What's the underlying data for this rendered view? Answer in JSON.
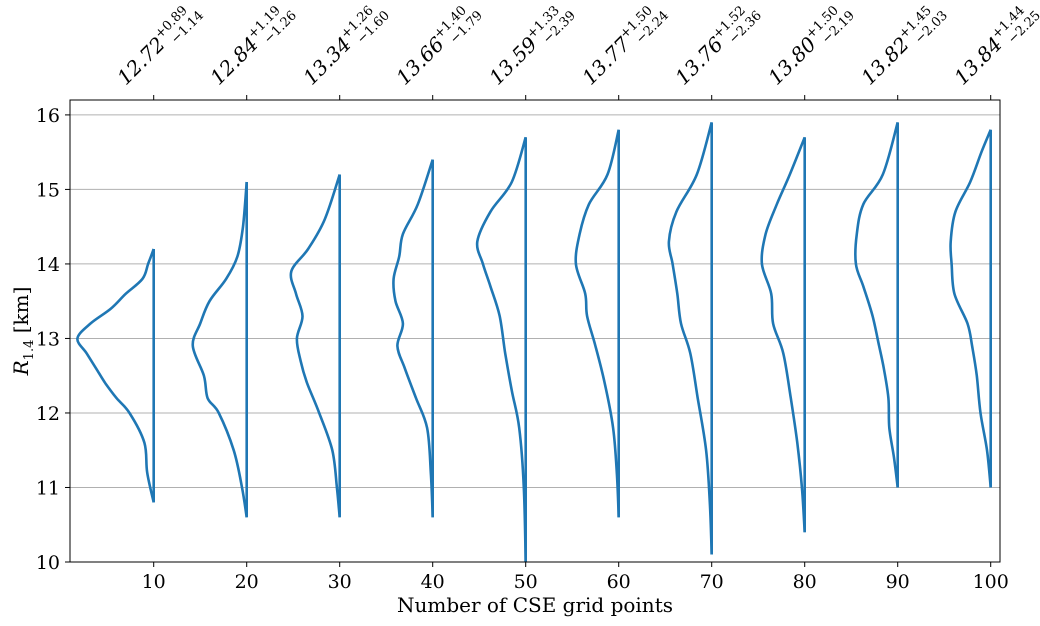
{
  "chart_data": {
    "type": "violin",
    "xlabel": "Number of CSE grid points",
    "ylabel": "R",
    "ylabel_sub": "1.4",
    "ylabel_unit": " [km]",
    "xlim": [
      1,
      101
    ],
    "ylim": [
      10,
      16.2
    ],
    "xticks": [
      10,
      20,
      30,
      40,
      50,
      60,
      70,
      80,
      90,
      100
    ],
    "yticks": [
      10,
      11,
      12,
      13,
      14,
      15,
      16
    ],
    "grid": "horizontal",
    "series_color": "#1f77b4",
    "top_labels": [
      {
        "x": 10,
        "median": "12.72",
        "plus": "+0.89",
        "minus": "−1.14"
      },
      {
        "x": 20,
        "median": "12.84",
        "plus": "+1.19",
        "minus": "−1.26"
      },
      {
        "x": 30,
        "median": "13.34",
        "plus": "+1.26",
        "minus": "−1.60"
      },
      {
        "x": 40,
        "median": "13.66",
        "plus": "+1.40",
        "minus": "−1.79"
      },
      {
        "x": 50,
        "median": "13.59",
        "plus": "+1.33",
        "minus": "−2.39"
      },
      {
        "x": 60,
        "median": "13.77",
        "plus": "+1.50",
        "minus": "−2.24"
      },
      {
        "x": 70,
        "median": "13.76",
        "plus": "+1.52",
        "minus": "−2.36"
      },
      {
        "x": 80,
        "median": "13.80",
        "plus": "+1.50",
        "minus": "−2.19"
      },
      {
        "x": 90,
        "median": "13.82",
        "plus": "+1.45",
        "minus": "−2.03"
      },
      {
        "x": 100,
        "median": "13.84",
        "plus": "+1.44",
        "minus": "−2.25"
      }
    ],
    "distributions": [
      {
        "x": 10,
        "profile": [
          [
            10.8,
            0
          ],
          [
            11.2,
            0.7
          ],
          [
            11.6,
            1.0
          ],
          [
            12.0,
            2.6
          ],
          [
            12.2,
            4.0
          ],
          [
            12.4,
            5.2
          ],
          [
            12.6,
            6.2
          ],
          [
            12.8,
            7.2
          ],
          [
            13.0,
            8.2
          ],
          [
            13.2,
            6.8
          ],
          [
            13.4,
            4.6
          ],
          [
            13.6,
            3.0
          ],
          [
            13.8,
            1.2
          ],
          [
            14.0,
            0.6
          ],
          [
            14.2,
            0
          ]
        ]
      },
      {
        "x": 20,
        "profile": [
          [
            10.6,
            0
          ],
          [
            11.0,
            0.5
          ],
          [
            11.5,
            1.4
          ],
          [
            12.0,
            3.0
          ],
          [
            12.2,
            4.2
          ],
          [
            12.5,
            4.6
          ],
          [
            12.9,
            5.8
          ],
          [
            13.2,
            5.0
          ],
          [
            13.5,
            4.0
          ],
          [
            13.8,
            2.2
          ],
          [
            14.1,
            1.0
          ],
          [
            14.5,
            0.4
          ],
          [
            15.1,
            0
          ]
        ]
      },
      {
        "x": 30,
        "profile": [
          [
            10.6,
            0
          ],
          [
            11.0,
            0.3
          ],
          [
            11.5,
            0.8
          ],
          [
            12.0,
            2.2
          ],
          [
            12.4,
            3.5
          ],
          [
            12.7,
            4.2
          ],
          [
            13.0,
            4.6
          ],
          [
            13.3,
            4.0
          ],
          [
            13.6,
            4.7
          ],
          [
            13.9,
            5.2
          ],
          [
            14.2,
            3.4
          ],
          [
            14.6,
            1.6
          ],
          [
            15.2,
            0
          ]
        ]
      },
      {
        "x": 40,
        "profile": [
          [
            10.6,
            0
          ],
          [
            11.2,
            0.2
          ],
          [
            11.8,
            0.6
          ],
          [
            12.2,
            1.8
          ],
          [
            12.6,
            3.0
          ],
          [
            12.9,
            3.8
          ],
          [
            13.2,
            3.2
          ],
          [
            13.5,
            4.0
          ],
          [
            13.8,
            4.2
          ],
          [
            14.1,
            3.6
          ],
          [
            14.4,
            3.2
          ],
          [
            14.8,
            1.6
          ],
          [
            15.4,
            0
          ]
        ]
      },
      {
        "x": 50,
        "profile": [
          [
            10.0,
            0
          ],
          [
            11.0,
            0.2
          ],
          [
            11.8,
            0.7
          ],
          [
            12.3,
            1.5
          ],
          [
            12.8,
            2.2
          ],
          [
            13.3,
            2.8
          ],
          [
            13.7,
            3.8
          ],
          [
            14.0,
            4.6
          ],
          [
            14.3,
            5.2
          ],
          [
            14.7,
            3.8
          ],
          [
            15.1,
            1.5
          ],
          [
            15.7,
            0
          ]
        ]
      },
      {
        "x": 60,
        "profile": [
          [
            10.6,
            0
          ],
          [
            11.2,
            0.2
          ],
          [
            11.8,
            0.6
          ],
          [
            12.4,
            1.5
          ],
          [
            12.9,
            2.5
          ],
          [
            13.3,
            3.4
          ],
          [
            13.6,
            3.6
          ],
          [
            14.0,
            4.6
          ],
          [
            14.4,
            4.2
          ],
          [
            14.8,
            3.2
          ],
          [
            15.2,
            1.2
          ],
          [
            15.8,
            0
          ]
        ]
      },
      {
        "x": 70,
        "profile": [
          [
            10.1,
            0
          ],
          [
            10.8,
            0.2
          ],
          [
            11.5,
            0.6
          ],
          [
            12.2,
            1.5
          ],
          [
            12.8,
            2.3
          ],
          [
            13.2,
            3.3
          ],
          [
            13.6,
            3.7
          ],
          [
            14.0,
            4.2
          ],
          [
            14.3,
            4.6
          ],
          [
            14.7,
            3.8
          ],
          [
            15.2,
            1.6
          ],
          [
            15.9,
            0
          ]
        ]
      },
      {
        "x": 80,
        "profile": [
          [
            10.4,
            0
          ],
          [
            11.0,
            0.3
          ],
          [
            11.6,
            0.8
          ],
          [
            12.2,
            1.5
          ],
          [
            12.8,
            2.3
          ],
          [
            13.2,
            3.4
          ],
          [
            13.6,
            3.6
          ],
          [
            14.0,
            4.6
          ],
          [
            14.4,
            4.2
          ],
          [
            14.8,
            3.0
          ],
          [
            15.2,
            1.6
          ],
          [
            15.7,
            0
          ]
        ]
      },
      {
        "x": 90,
        "profile": [
          [
            11.0,
            0
          ],
          [
            11.4,
            0.4
          ],
          [
            11.8,
            0.9
          ],
          [
            12.2,
            1.0
          ],
          [
            12.6,
            1.5
          ],
          [
            12.9,
            2.0
          ],
          [
            13.3,
            2.7
          ],
          [
            13.7,
            3.7
          ],
          [
            14.0,
            4.5
          ],
          [
            14.4,
            4.4
          ],
          [
            14.8,
            3.7
          ],
          [
            15.2,
            1.6
          ],
          [
            15.9,
            0
          ]
        ]
      },
      {
        "x": 100,
        "profile": [
          [
            11.0,
            0
          ],
          [
            11.5,
            0.4
          ],
          [
            12.0,
            1.1
          ],
          [
            12.5,
            1.5
          ],
          [
            12.9,
            2.0
          ],
          [
            13.2,
            2.5
          ],
          [
            13.6,
            3.9
          ],
          [
            14.0,
            4.2
          ],
          [
            14.3,
            4.3
          ],
          [
            14.7,
            3.8
          ],
          [
            15.1,
            2.2
          ],
          [
            15.5,
            1.0
          ],
          [
            15.8,
            0
          ]
        ]
      }
    ]
  }
}
